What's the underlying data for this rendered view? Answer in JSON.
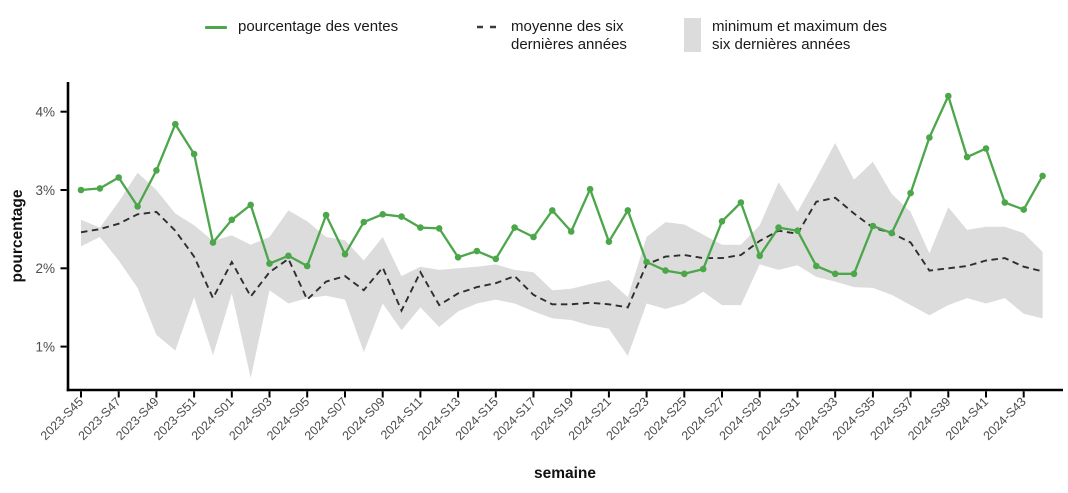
{
  "page": {
    "background": "#ffffff"
  },
  "legend": {
    "items": [
      {
        "label": "pourcentage des ventes",
        "type": "line",
        "color": "#4ca64a"
      },
      {
        "label": "moyenne des six\ndernières années",
        "type": "dashed-line",
        "color": "#3a3a3a"
      },
      {
        "label": "minimum et maximum des\nsix dernières années",
        "type": "ribbon",
        "color": "#dcdcdc"
      }
    ]
  },
  "chart_data": {
    "type": "line",
    "title": "",
    "xlabel": "semaine",
    "ylabel": "pourcentage",
    "ylim": [
      0.45,
      4.38
    ],
    "grid": false,
    "legend_position": "top",
    "yticks": [
      {
        "label": "1%",
        "value": 1
      },
      {
        "label": "2%",
        "value": 2
      },
      {
        "label": "3%",
        "value": 3
      },
      {
        "label": "4%",
        "value": 4
      }
    ],
    "x_tick_every": 2,
    "x_ticklabels": [
      "2023-S45",
      "2023-S47",
      "2023-S49",
      "2023-S51",
      "2024-S01",
      "2024-S03",
      "2024-S05",
      "2024-S07",
      "2024-S09",
      "2024-S11",
      "2024-S13",
      "2024-S15",
      "2024-S17",
      "2024-S19",
      "2024-S21",
      "2024-S23",
      "2024-S25",
      "2024-S27",
      "2024-S29",
      "2024-S31",
      "2024-S33",
      "2024-S35",
      "2024-S37",
      "2024-S39",
      "2024-S41",
      "2024-S43"
    ],
    "weeks": [
      "2023-S45",
      "2023-S46",
      "2023-S47",
      "2023-S48",
      "2023-S49",
      "2023-S50",
      "2023-S51",
      "2023-S52",
      "2024-S01",
      "2024-S02",
      "2024-S03",
      "2024-S04",
      "2024-S05",
      "2024-S06",
      "2024-S07",
      "2024-S08",
      "2024-S09",
      "2024-S10",
      "2024-S11",
      "2024-S12",
      "2024-S13",
      "2024-S14",
      "2024-S15",
      "2024-S16",
      "2024-S17",
      "2024-S18",
      "2024-S19",
      "2024-S20",
      "2024-S21",
      "2024-S22",
      "2024-S23",
      "2024-S24",
      "2024-S25",
      "2024-S26",
      "2024-S27",
      "2024-S28",
      "2024-S29",
      "2024-S30",
      "2024-S31",
      "2024-S32",
      "2024-S33",
      "2024-S34",
      "2024-S35",
      "2024-S36",
      "2024-S37",
      "2024-S38",
      "2024-S39",
      "2024-S40",
      "2024-S41",
      "2024-S42",
      "2024-S43",
      "2024-S44"
    ],
    "series": [
      {
        "name": "pourcentage des ventes",
        "color": "#4ca64a",
        "marker": "circle",
        "values": [
          3.0,
          3.02,
          3.16,
          2.79,
          3.25,
          3.84,
          3.46,
          2.33,
          2.62,
          2.81,
          2.06,
          2.16,
          2.03,
          2.68,
          2.18,
          2.59,
          2.69,
          2.66,
          2.52,
          2.51,
          2.14,
          2.22,
          2.12,
          2.52,
          2.4,
          2.74,
          2.47,
          3.01,
          2.34,
          2.74,
          2.08,
          1.97,
          1.93,
          1.99,
          2.6,
          2.84,
          2.16,
          2.52,
          2.48,
          2.03,
          1.93,
          1.93,
          2.54,
          2.45,
          2.96,
          3.67,
          4.2,
          3.42,
          3.53,
          2.84,
          2.75,
          3.18
        ]
      },
      {
        "name": "moyenne des six dernières années",
        "color": "#2e2e2e",
        "style": "dashed",
        "values": [
          2.46,
          2.5,
          2.57,
          2.69,
          2.72,
          2.48,
          2.15,
          1.62,
          2.08,
          1.64,
          1.95,
          2.12,
          1.6,
          1.83,
          1.9,
          1.72,
          2.01,
          1.46,
          1.95,
          1.53,
          1.68,
          1.76,
          1.81,
          1.9,
          1.66,
          1.54,
          1.54,
          1.56,
          1.54,
          1.5,
          2.05,
          2.15,
          2.17,
          2.13,
          2.13,
          2.17,
          2.35,
          2.48,
          2.44,
          2.85,
          2.9,
          2.7,
          2.52,
          2.45,
          2.33,
          1.97,
          2.0,
          2.03,
          2.1,
          2.13,
          2.02,
          1.96
        ]
      }
    ],
    "ribbon": {
      "name": "minimum et maximum des six dernières années",
      "color": "#dcdcdc",
      "min": [
        2.28,
        2.4,
        2.1,
        1.75,
        1.15,
        0.95,
        1.63,
        0.89,
        1.68,
        0.6,
        1.72,
        1.55,
        1.62,
        1.65,
        1.6,
        0.93,
        1.55,
        1.21,
        1.5,
        1.25,
        1.45,
        1.55,
        1.6,
        1.55,
        1.45,
        1.36,
        1.34,
        1.27,
        1.23,
        0.88,
        1.55,
        1.48,
        1.55,
        1.7,
        1.53,
        1.53,
        2.05,
        1.98,
        2.04,
        1.89,
        1.83,
        1.76,
        1.75,
        1.66,
        1.53,
        1.4,
        1.53,
        1.62,
        1.55,
        1.62,
        1.42,
        1.36
      ],
      "max": [
        2.62,
        2.52,
        2.85,
        3.22,
        3.0,
        2.7,
        2.55,
        2.35,
        2.42,
        2.3,
        2.4,
        2.74,
        2.6,
        2.4,
        2.36,
        2.1,
        2.4,
        1.9,
        2.02,
        1.98,
        2.0,
        2.02,
        2.05,
        1.98,
        1.95,
        1.72,
        1.74,
        1.8,
        1.85,
        1.63,
        2.4,
        2.59,
        2.56,
        2.43,
        2.3,
        2.3,
        2.55,
        3.1,
        2.72,
        3.15,
        3.6,
        3.13,
        3.36,
        2.95,
        2.72,
        2.19,
        2.78,
        2.49,
        2.53,
        2.53,
        2.45,
        2.21
      ]
    }
  }
}
